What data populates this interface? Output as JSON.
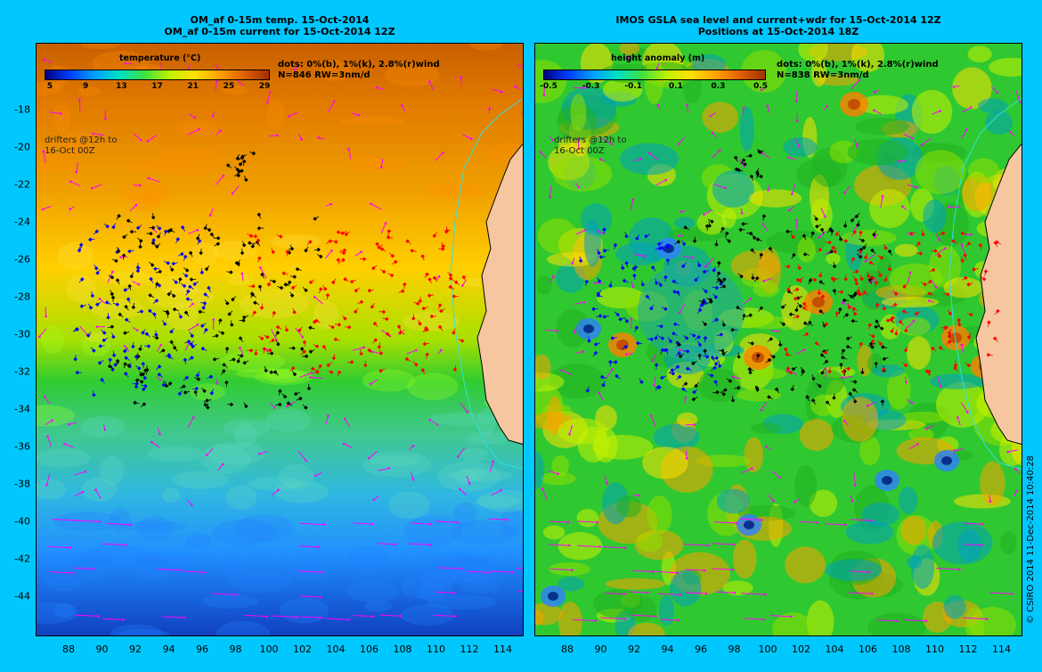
{
  "left_panel": {
    "title_line1": "OM_af 0-15m temp. 15-Oct-2014",
    "title_line2": "OM_af 0-15m current for 15-Oct-2014 12Z",
    "colorbar_label": "temperature (°C)",
    "colorbar_ticks": [
      "5",
      "9",
      "13",
      "17",
      "21",
      "25",
      "29"
    ],
    "info_line1": "dots: 0%(b), 1%(k), 2.8%(r)wind",
    "info_line2": "N=846 RW=3nm/d",
    "drifters_line1": "drifters @12h to",
    "drifters_line2": "16-Oct 00Z"
  },
  "right_panel": {
    "title_line1": "IMOS GSLA sea level and current+wdr for 15-Oct-2014 12Z",
    "title_line2": "Positions at 15-Oct-2014 18Z",
    "colorbar_label": "height anomaly (m)",
    "colorbar_ticks": [
      "-0.5",
      "-0.3",
      "-0.1",
      "0.1",
      "0.3",
      "0.5"
    ],
    "info_line1": "dots: 0%(b), 1%(k), 2.8%(r)wind",
    "info_line2": "N=838 RW=3nm/d",
    "drifters_line1": "drifters @12h to",
    "drifters_line2": "16-Oct 00Z"
  },
  "y_axis_ticks": [
    "-18",
    "-20",
    "-22",
    "-24",
    "-26",
    "-28",
    "-30",
    "-32",
    "-34",
    "-36",
    "-38",
    "-40",
    "-42",
    "-44"
  ],
  "x_axis_ticks": [
    "88",
    "90",
    "92",
    "94",
    "96",
    "98",
    "100",
    "102",
    "104",
    "106",
    "108",
    "110",
    "112",
    "114"
  ],
  "copyright": "© CSIRO 2014   11-Dec-2014 10:40:28",
  "colors": {
    "background": "#00c8ff",
    "vector": "#ff00ff",
    "drifter_blue": "#0000ff",
    "drifter_black": "#000000",
    "drifter_red": "#ff0000",
    "land": "#f5c6a0",
    "coast": "#30e0e0"
  }
}
